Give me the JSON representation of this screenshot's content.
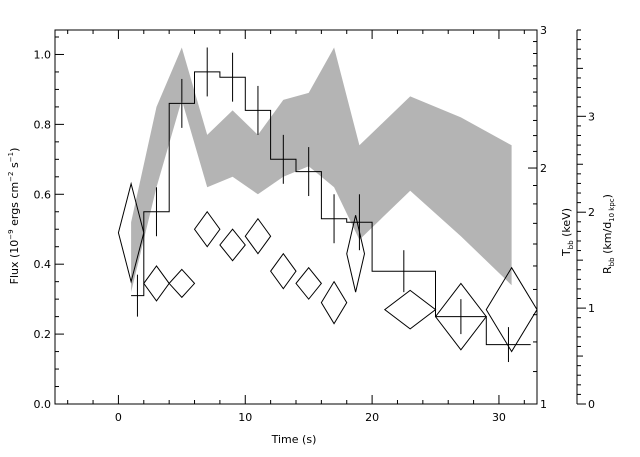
{
  "chart_data": {
    "type": "line",
    "xlabel": "Time (s)",
    "ylabel": {
      "pre": "Flux (10",
      "exp1": "−9",
      "mid1": " ergs cm",
      "exp2": "−2",
      "mid2": " s",
      "exp3": "−1",
      "post": ")"
    },
    "right_axis_1_label": {
      "main": "T",
      "sub": "bb",
      "rest": " (keV)"
    },
    "right_axis_2_label": {
      "main": "R",
      "sub": "bb",
      "rest1": " (km/d",
      "sub2": "10 kpc",
      "rest2": ")"
    },
    "xlim": [
      -5,
      33
    ],
    "ylim": [
      0.0,
      1.07
    ],
    "x_ticks": [
      0,
      10,
      20,
      30
    ],
    "x_tick_labels": [
      "0",
      "10",
      "20",
      "30"
    ],
    "y_ticks": [
      0.0,
      0.2,
      0.4,
      0.6,
      0.8,
      1.0
    ],
    "y_tick_labels": [
      "0.0",
      "0.2",
      "0.4",
      "0.6",
      "0.8",
      "1.0"
    ],
    "right_axis_1": {
      "scale": "log",
      "range": [
        1,
        3
      ],
      "major_ticks": [
        1,
        2,
        3
      ],
      "major_tick_labels": [
        "1",
        "2",
        "3"
      ]
    },
    "right_axis_2": {
      "scale": "linear",
      "range": [
        0,
        3.9
      ],
      "major_ticks": [
        0,
        1,
        2,
        3
      ],
      "major_tick_labels": [
        "0",
        "1",
        "2",
        "3"
      ]
    },
    "series": [
      {
        "kind": "step_flux_with_errors",
        "bins": [
          {
            "x0": 1,
            "x1": 2,
            "y": 0.31,
            "err": 0.06
          },
          {
            "x0": 2,
            "x1": 4,
            "y": 0.55,
            "err": 0.07
          },
          {
            "x0": 4,
            "x1": 6,
            "y": 0.86,
            "err": 0.07
          },
          {
            "x0": 6,
            "x1": 8,
            "y": 0.95,
            "err": 0.07
          },
          {
            "x0": 8,
            "x1": 10,
            "y": 0.935,
            "err": 0.07
          },
          {
            "x0": 10,
            "x1": 12,
            "y": 0.84,
            "err": 0.07
          },
          {
            "x0": 12,
            "x1": 14,
            "y": 0.7,
            "err": 0.07
          },
          {
            "x0": 14,
            "x1": 16,
            "y": 0.665,
            "err": 0.07
          },
          {
            "x0": 16,
            "x1": 18,
            "y": 0.53,
            "err": 0.07
          },
          {
            "x0": 18,
            "x1": 20,
            "y": 0.52,
            "err": 0.08
          },
          {
            "x0": 20,
            "x1": 25,
            "y": 0.38,
            "err": 0.06
          },
          {
            "x0": 25,
            "x1": 29,
            "y": 0.25,
            "err": 0.05
          },
          {
            "x0": 29,
            "x1": 32.5,
            "y": 0.17,
            "err": 0.05
          }
        ]
      },
      {
        "kind": "diamond_temperature",
        "points": [
          {
            "x": 1.0,
            "xerr": 1.0,
            "y": 0.49,
            "yerr": 0.14
          },
          {
            "x": 3.0,
            "xerr": 1.0,
            "y": 0.345,
            "yerr": 0.05
          },
          {
            "x": 5.0,
            "xerr": 1.0,
            "y": 0.345,
            "yerr": 0.04
          },
          {
            "x": 7.0,
            "xerr": 1.0,
            "y": 0.5,
            "yerr": 0.05
          },
          {
            "x": 9.0,
            "xerr": 1.0,
            "y": 0.455,
            "yerr": 0.045
          },
          {
            "x": 11.0,
            "xerr": 1.0,
            "y": 0.48,
            "yerr": 0.05
          },
          {
            "x": 13.0,
            "xerr": 1.0,
            "y": 0.38,
            "yerr": 0.05
          },
          {
            "x": 15.0,
            "xerr": 1.0,
            "y": 0.345,
            "yerr": 0.045
          },
          {
            "x": 17.0,
            "xerr": 1.0,
            "y": 0.29,
            "yerr": 0.06
          },
          {
            "x": 18.7,
            "xerr": 0.7,
            "y": 0.43,
            "yerr": 0.11
          },
          {
            "x": 23.0,
            "xerr": 2.0,
            "y": 0.27,
            "yerr": 0.055
          },
          {
            "x": 27.0,
            "xerr": 2.0,
            "y": 0.25,
            "yerr": 0.095
          },
          {
            "x": 31.0,
            "xerr": 2.0,
            "y": 0.27,
            "yerr": 0.12
          }
        ]
      },
      {
        "kind": "shaded_radius_band",
        "color": "#b4b4b4",
        "x": [
          1,
          3,
          5,
          7,
          9,
          11,
          13,
          15,
          17,
          19,
          23,
          27,
          31
        ],
        "upper": [
          0.52,
          0.85,
          1.02,
          0.77,
          0.84,
          0.77,
          0.87,
          0.89,
          1.02,
          0.74,
          0.88,
          0.82,
          0.74
        ],
        "lower": [
          0.32,
          0.62,
          0.87,
          0.62,
          0.65,
          0.6,
          0.65,
          0.68,
          0.62,
          0.47,
          0.61,
          0.48,
          0.34
        ]
      }
    ]
  }
}
